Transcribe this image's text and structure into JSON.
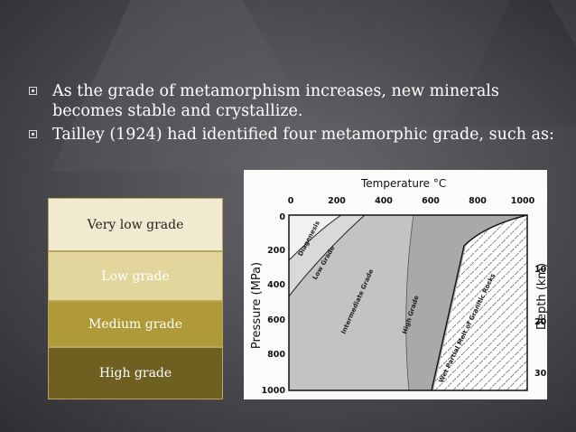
{
  "bullets": [
    "As the grade of metamorphism increases, new minerals becomes stable and crystallize.",
    "Tailley (1924) had identified four metamorphic grade, such as:"
  ],
  "grades": [
    "Very low grade",
    "Low grade",
    "Medium grade",
    "High grade"
  ],
  "grade_colors": [
    "#f1ead0",
    "#e3d69d",
    "#b09a37",
    "#6f6022"
  ],
  "diagram": {
    "title": "Temperature °C",
    "x_ticks": [
      "0",
      "200",
      "400",
      "600",
      "800",
      "1000"
    ],
    "y_left_label": "Pressure (MPa)",
    "y_left_ticks": [
      "0",
      "200",
      "400",
      "600",
      "800",
      "1000"
    ],
    "y_right_label": "Depth (km)",
    "y_right_ticks": [
      "10",
      "20",
      "30"
    ],
    "zones": {
      "diagenesis": "Diagenesis",
      "low": "Low Grade",
      "intermediate": "Intermediate Grade",
      "high": "High Grade",
      "melt": "Wet Partial Melt of Granitic Rocks"
    }
  }
}
